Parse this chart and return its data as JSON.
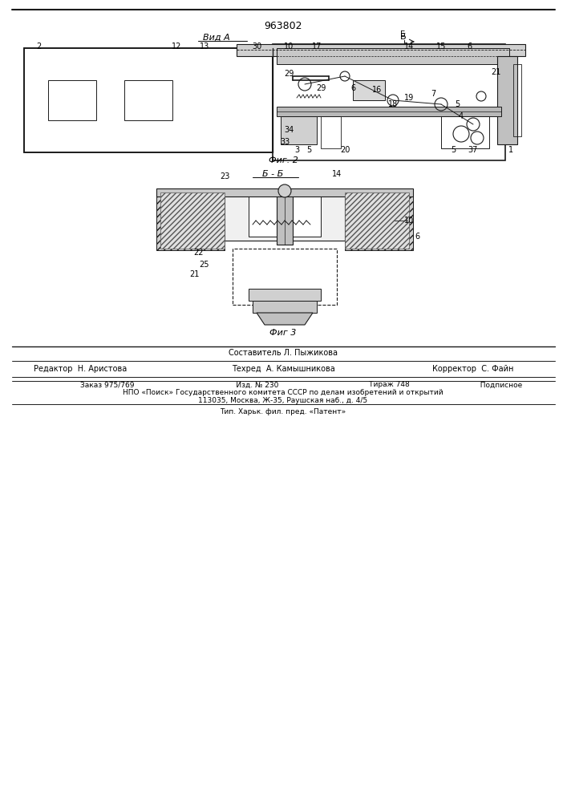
{
  "patent_number": "963802",
  "fig2_label": "Фиг. 2",
  "fig3_label": "Фиг 3",
  "vid_a_label": "Вид А",
  "section_bb_label": "Б - Б",
  "footer_line1": "Составитель Л. Пыжикова",
  "footer_line2_col1": "Редактор  Н. Аристова",
  "footer_line2_col2": "Техред  А. Камышникова",
  "footer_line2_col3": "Корректор  С. Файн",
  "footer_line3": "Заказ 975/769          Изд. № 230          Тираж 748          Подписное",
  "footer_line4": "НПО «Поиск» Государственного комитета СССР по делам изобретений и открытий",
  "footer_line5": "113035, Москва, Ж-35, Раушская наб., д. 4/5",
  "footer_line6": "Тип. Харьк. фил. пред. «Патент»",
  "bg_color": "#ffffff",
  "line_color": "#1a1a1a",
  "hatch_color": "#555555"
}
